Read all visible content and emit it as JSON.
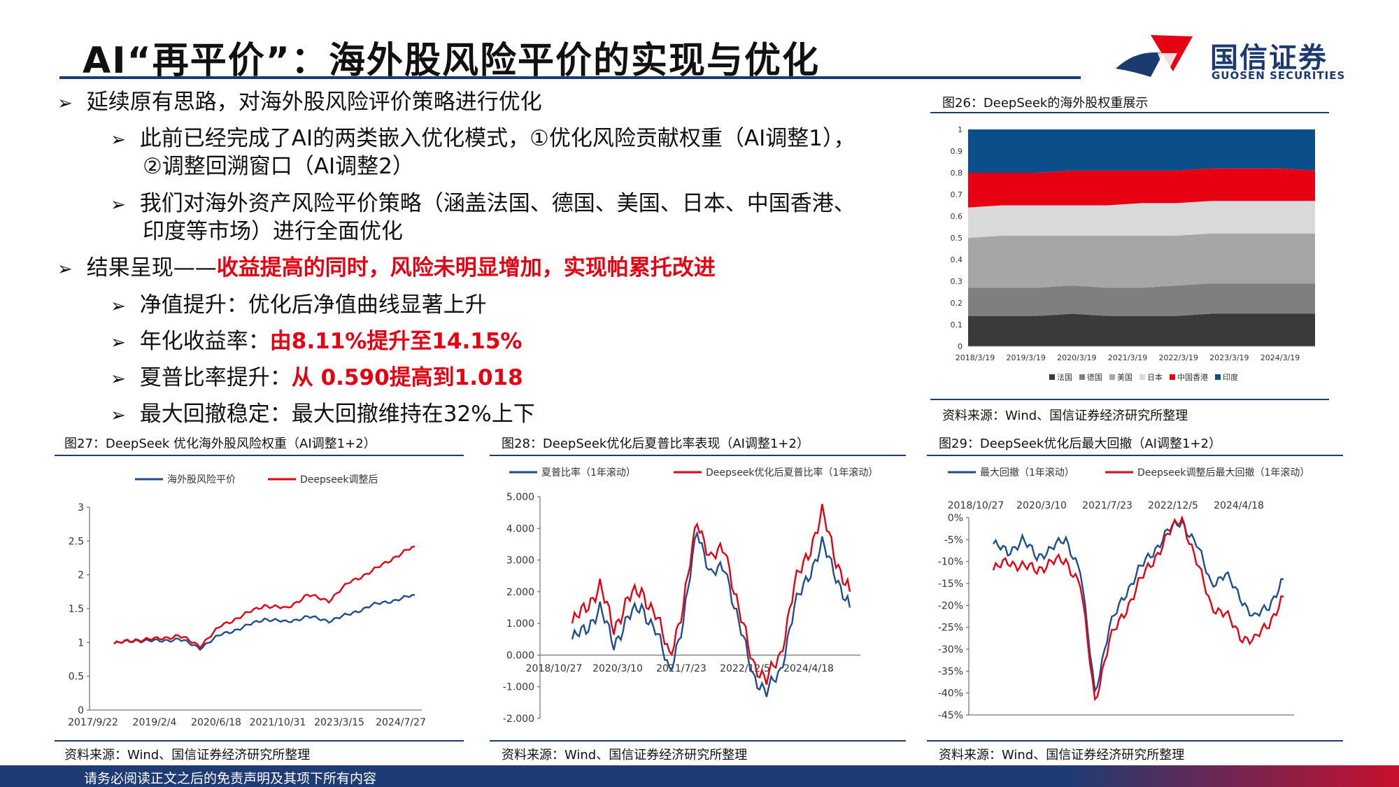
{
  "header": {
    "title": "AI“再平价”：海外股风险平价的实现与优化",
    "logo_cn": "国信证券",
    "logo_en": "GUOSEN SECURITIES"
  },
  "bullets": {
    "b1": "延续原有思路，对海外股风险评价策略进行优化",
    "b1_1_line1": "此前已经完成了AI的两类嵌入优化模式，①优化风险贡献权重（AI调整1），",
    "b1_1_line2": "②调整回溯窗口（AI调整2）",
    "b1_2_line1": "我们对海外资产风险平价策略（涵盖法国、德国、美国、日本、中国香港、",
    "b1_2_line2": "印度等市场）进行全面优化",
    "b2_prefix": "结果呈现——",
    "b2_highlight": "收益提高的同时，风险未明显增加，实现帕累托改进",
    "b2_1": "净值提升：优化后净值曲线显著上升",
    "b2_2_prefix": "年化收益率：",
    "b2_2_highlight": "由8.11%提升至14.15%",
    "b2_3_prefix": "夏普比率提升：",
    "b2_3_highlight": "从 0.590提高到1.018",
    "b2_4": "最大回撤稳定：最大回撤维持在32%上下"
  },
  "fig26": {
    "title": "图26：DeepSeek的海外股权重展示",
    "source": "资料来源：Wind、国信证券经济研究所整理"
  },
  "fig27": {
    "title": "图27：DeepSeek 优化海外股风险权重（AI调整1+2）",
    "source": "资料来源：Wind、国信证券经济研究所整理"
  },
  "fig28": {
    "title": "图28：DeepSeek优化后夏普比率表现（AI调整1+2）",
    "source": "资料来源：Wind、国信证券经济研究所整理"
  },
  "fig29": {
    "title": "图29：DeepSeek优化后最大回撤（AI调整1+2）",
    "source": "资料来源：Wind、国信证券经济研究所整理"
  },
  "footer": {
    "disclaimer": "请务必阅读正文之后的免责声明及其项下所有内容"
  },
  "colors": {
    "navy": "#1f4e8c",
    "red": "#e60012",
    "brand_blue": "#1f3b73"
  },
  "chart_data": [
    {
      "id": "fig26",
      "type": "area",
      "stacked": true,
      "x_ticks": [
        "2018/3/19",
        "2019/3/19",
        "2020/3/19",
        "2021/3/19",
        "2022/3/19",
        "2023/3/19",
        "2024/3/19"
      ],
      "y_ticks": [
        "0",
        "0.1",
        "0.2",
        "0.3",
        "0.4",
        "0.5",
        "0.6",
        "0.7",
        "0.8",
        "0.9",
        "1"
      ],
      "ylim": [
        0,
        1
      ],
      "legend_position": "bottom",
      "series": [
        {
          "name": "法国",
          "color": "#3a3a3a",
          "values": [
            0.14,
            0.14,
            0.14,
            0.15,
            0.14,
            0.14,
            0.14,
            0.15,
            0.15,
            0.15,
            0.15
          ]
        },
        {
          "name": "德国",
          "color": "#7f7f7f",
          "values": [
            0.13,
            0.13,
            0.13,
            0.13,
            0.13,
            0.13,
            0.14,
            0.14,
            0.14,
            0.14,
            0.14
          ]
        },
        {
          "name": "美国",
          "color": "#a6a6a6",
          "values": [
            0.23,
            0.24,
            0.24,
            0.23,
            0.24,
            0.24,
            0.23,
            0.23,
            0.23,
            0.23,
            0.23
          ]
        },
        {
          "name": "日本",
          "color": "#d9d9d9",
          "values": [
            0.14,
            0.14,
            0.14,
            0.14,
            0.14,
            0.15,
            0.15,
            0.15,
            0.15,
            0.15,
            0.15
          ]
        },
        {
          "name": "中国香港",
          "color": "#e60012",
          "values": [
            0.16,
            0.15,
            0.15,
            0.16,
            0.16,
            0.15,
            0.15,
            0.15,
            0.15,
            0.15,
            0.14
          ]
        },
        {
          "name": "印度",
          "color": "#0b4f8a",
          "values": [
            0.2,
            0.2,
            0.2,
            0.19,
            0.19,
            0.19,
            0.19,
            0.18,
            0.18,
            0.18,
            0.19
          ]
        }
      ]
    },
    {
      "id": "fig27",
      "type": "line",
      "x_ticks": [
        "2017/9/22",
        "2019/2/4",
        "2020/6/18",
        "2021/10/31",
        "2023/3/15",
        "2024/7/27"
      ],
      "y_ticks": [
        "0",
        "0.5",
        "1",
        "1.5",
        "2",
        "2.5",
        "3"
      ],
      "ylim": [
        0,
        3
      ],
      "legend_position": "top",
      "series": [
        {
          "name": "海外股风险平价",
          "color": "#1f4e8c",
          "values": [
            0.98,
            1.03,
            1.02,
            1.05,
            0.92,
            1.12,
            1.22,
            1.35,
            1.3,
            1.38,
            1.32,
            1.42,
            1.55,
            1.62,
            1.7
          ]
        },
        {
          "name": "Deepseek调整后",
          "color": "#e60012",
          "values": [
            0.98,
            1.04,
            1.05,
            1.1,
            0.95,
            1.25,
            1.4,
            1.55,
            1.5,
            1.7,
            1.62,
            1.9,
            2.05,
            2.25,
            2.42
          ]
        }
      ]
    },
    {
      "id": "fig28",
      "type": "line",
      "x_ticks": [
        "2018/10/27",
        "2020/3/10",
        "2021/7/23",
        "2022/12/5",
        "2024/4/18"
      ],
      "y_ticks": [
        "-2.000",
        "-1.000",
        "0.000",
        "1.000",
        "2.000",
        "3.000",
        "4.000",
        "5.000"
      ],
      "ylim": [
        -2,
        5
      ],
      "legend_position": "top",
      "series": [
        {
          "name": "夏普比率（1年滚动）",
          "color": "#1f4e8c",
          "values": [
            0.5,
            0.8,
            1.5,
            0.3,
            1.2,
            1.5,
            0.8,
            -0.5,
            1.0,
            4.0,
            2.5,
            2.8,
            1.0,
            -0.6,
            -1.2,
            -0.5,
            1.5,
            2.5,
            3.5,
            2.5,
            1.5
          ]
        },
        {
          "name": "Deepseek优化后夏普比率（1年滚动）",
          "color": "#e60012",
          "values": [
            1.0,
            1.5,
            2.2,
            0.8,
            1.8,
            2.0,
            1.3,
            0.0,
            1.5,
            4.3,
            3.0,
            3.4,
            1.4,
            -0.2,
            -0.8,
            0.0,
            2.2,
            3.2,
            4.5,
            3.0,
            2.0
          ]
        }
      ]
    },
    {
      "id": "fig29",
      "type": "line",
      "x_ticks": [
        "2018/10/27",
        "2020/3/10",
        "2021/7/23",
        "2022/12/5",
        "2024/4/18"
      ],
      "y_ticks": [
        "-45%",
        "-40%",
        "-35%",
        "-30%",
        "-25%",
        "-20%",
        "-15%",
        "-10%",
        "-5%",
        "0%"
      ],
      "ylim": [
        -45,
        0
      ],
      "legend_position": "top",
      "series": [
        {
          "name": "最大回撤（1年滚动）",
          "color": "#1f4e8c",
          "values": [
            -6,
            -8,
            -5,
            -9,
            -7,
            -5,
            -12,
            -40,
            -25,
            -18,
            -12,
            -8,
            -3,
            -1,
            -6,
            -15,
            -13,
            -18,
            -23,
            -20,
            -14
          ]
        },
        {
          "name": "Deepseek调整后最大回撤（1年滚动）",
          "color": "#e60012",
          "values": [
            -12,
            -10,
            -11,
            -12,
            -10,
            -10,
            -15,
            -42,
            -28,
            -22,
            -15,
            -10,
            -4,
            0,
            -10,
            -20,
            -22,
            -27,
            -28,
            -24,
            -18
          ]
        }
      ]
    }
  ]
}
